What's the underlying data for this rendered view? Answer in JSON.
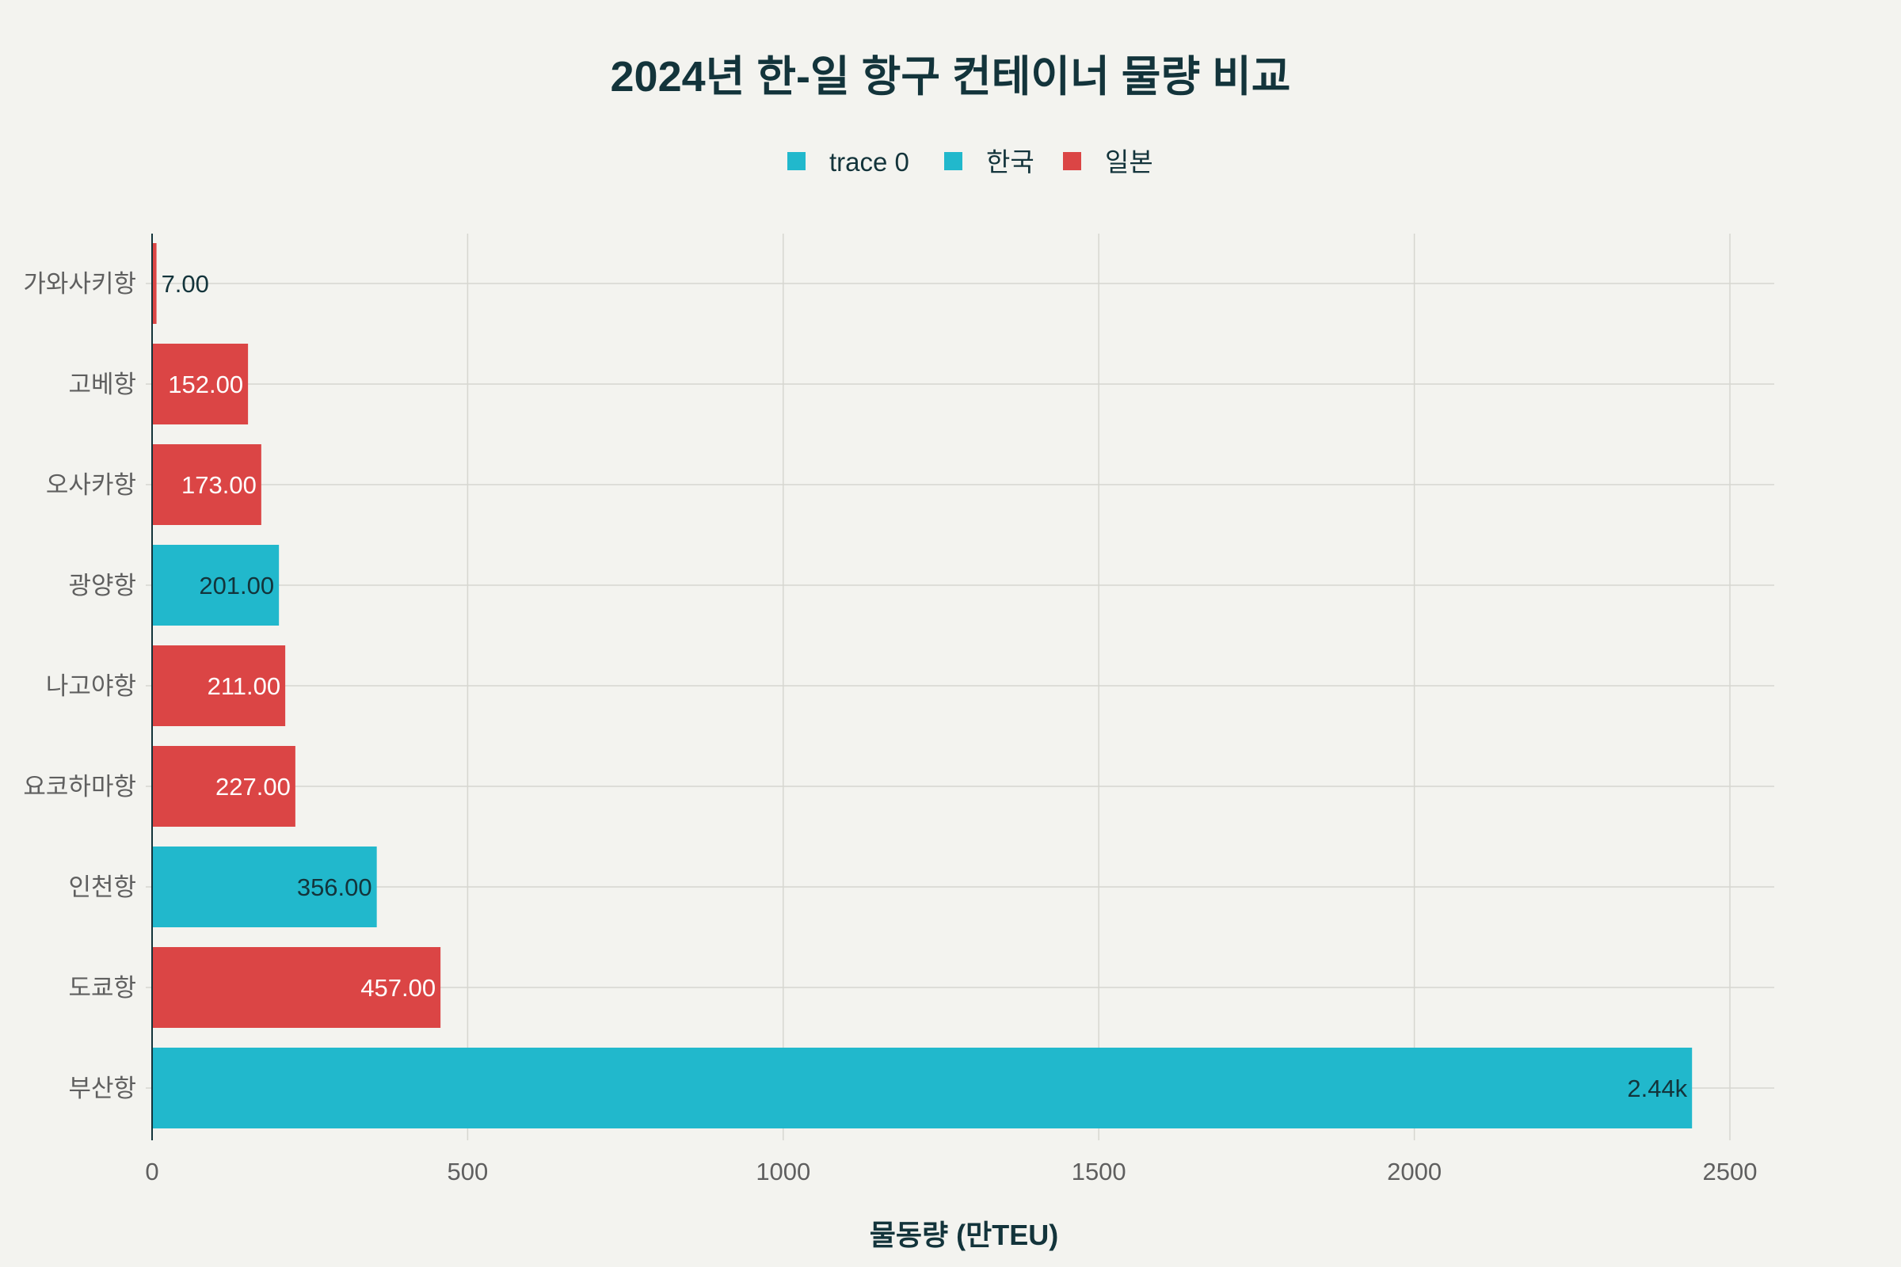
{
  "chart_data": {
    "type": "bar",
    "orientation": "horizontal",
    "title": "2024년 한-일 항구 컨테이너 물량 비교",
    "xlabel": "물동량 (만TEU)",
    "ylabel": "",
    "xlim": [
      0,
      2570
    ],
    "xticks": [
      0,
      500,
      1000,
      1500,
      2000,
      2500
    ],
    "grid": true,
    "legend_position": "top-center",
    "legend": [
      {
        "name": "trace 0",
        "color": "#21b8cc"
      },
      {
        "name": "한국",
        "color": "#21b8cc"
      },
      {
        "name": "일본",
        "color": "#db4545"
      }
    ],
    "categories": [
      "가와사키항",
      "고베항",
      "오사카항",
      "광양항",
      "나고야항",
      "요코하마항",
      "인천항",
      "도쿄항",
      "부산항"
    ],
    "values": [
      7,
      152,
      173,
      201,
      211,
      227,
      356,
      457,
      2440
    ],
    "labels": [
      "7.00",
      "152.00",
      "173.00",
      "201.00",
      "211.00",
      "227.00",
      "356.00",
      "457.00",
      "2.44k"
    ],
    "countries": [
      "일본",
      "일본",
      "일본",
      "한국",
      "일본",
      "일본",
      "한국",
      "일본",
      "한국"
    ]
  }
}
